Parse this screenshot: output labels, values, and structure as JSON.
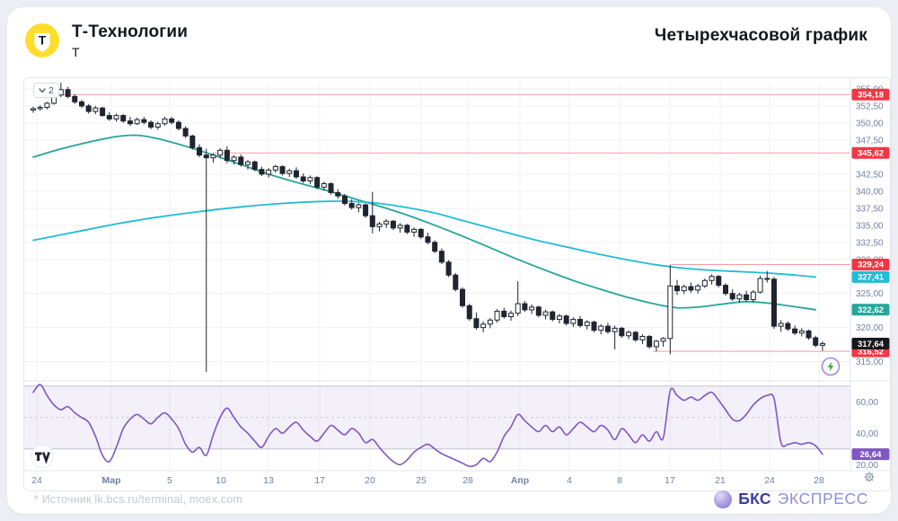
{
  "header": {
    "logo_letter": "Т",
    "title": "Т-Технологии",
    "subtitle": "Т",
    "right_title": "Четырехчасовой график",
    "brand_yellow": "#ffdd2d"
  },
  "toolbar": {
    "legend_collapsed_count": "2"
  },
  "footer": {
    "source_note": "* Источник lk.bcs.ru/terminal, moex.com",
    "brand_bold": "БКС",
    "brand_light": "ЭКСПРЕСС"
  },
  "icons": {
    "legend": "chevron-down-icon",
    "axis_corner": "gear-icon",
    "quick_trade": "lightning-icon",
    "watermark": "tradingview-logo"
  },
  "chart_data": {
    "type": "candlestick",
    "interval": "4h",
    "candle_color": "#20242e",
    "grid_color": "#f0f2f7",
    "axis_text_color": "#73819f",
    "price_axis": {
      "ticks": [
        {
          "label": "355,00",
          "value": 355.0
        },
        {
          "label": "352,50",
          "value": 352.5
        },
        {
          "label": "350,00",
          "value": 350.0
        },
        {
          "label": "347,50",
          "value": 347.5
        },
        {
          "label": "342,50",
          "value": 342.5
        },
        {
          "label": "340,00",
          "value": 340.0
        },
        {
          "label": "337,50",
          "value": 337.5
        },
        {
          "label": "335,00",
          "value": 335.0
        },
        {
          "label": "332,50",
          "value": 332.5
        },
        {
          "label": "330,00",
          "value": 330.0
        },
        {
          "label": "325,00",
          "value": 325.0
        },
        {
          "label": "320,00",
          "value": 320.0
        },
        {
          "label": "315,00",
          "value": 315.0
        }
      ],
      "badges": [
        {
          "label": "354,18",
          "value": 354.18,
          "color": "#f23645"
        },
        {
          "label": "345,62",
          "value": 345.62,
          "color": "#f23645"
        },
        {
          "label": "329,24",
          "value": 329.24,
          "color": "#f23645"
        },
        {
          "label": "327,41",
          "value": 327.41,
          "color": "#22bcd6"
        },
        {
          "label": "322,62",
          "value": 322.62,
          "color": "#26a69a"
        },
        {
          "label": "316,52",
          "value": 316.52,
          "color": "#f23645"
        },
        {
          "label": "317,64",
          "value": 317.64,
          "color": "#16181d"
        }
      ]
    },
    "time_axis": {
      "ticks": [
        {
          "label": "24",
          "idx": 0.52,
          "bold": false
        },
        {
          "label": "Мар",
          "idx": 11.28,
          "bold": true
        },
        {
          "label": "5",
          "idx": 19.71,
          "bold": false
        },
        {
          "label": "10",
          "idx": 27.11,
          "bold": false
        },
        {
          "label": "13",
          "idx": 33.98,
          "bold": false
        },
        {
          "label": "17",
          "idx": 41.38,
          "bold": false
        },
        {
          "label": "20",
          "idx": 48.64,
          "bold": false
        },
        {
          "label": "25",
          "idx": 56.03,
          "bold": false
        },
        {
          "label": "28",
          "idx": 62.78,
          "bold": false
        },
        {
          "label": "Апр",
          "idx": 70.3,
          "bold": true
        },
        {
          "label": "4",
          "idx": 77.43,
          "bold": false
        },
        {
          "label": "8",
          "idx": 84.7,
          "bold": false
        },
        {
          "label": "17",
          "idx": 91.96,
          "bold": false
        },
        {
          "label": "21",
          "idx": 99.22,
          "bold": false
        },
        {
          "label": "24",
          "idx": 106.36,
          "bold": false
        },
        {
          "label": "28",
          "idx": 113.49,
          "bold": false
        }
      ]
    },
    "levels": [
      {
        "price": 354.18,
        "from_idx": 0,
        "color": "#f23645"
      },
      {
        "price": 345.62,
        "from_idx": 26.2,
        "color": "#f23645"
      },
      {
        "price": 329.24,
        "from_idx": 92.1,
        "color": "#f23645"
      },
      {
        "price": 316.52,
        "from_idx": 89.5,
        "color": "#f23645"
      }
    ],
    "candles": [
      [
        351.9,
        352.4,
        351.5,
        352.1
      ],
      [
        352.1,
        352.6,
        351.8,
        352.3
      ],
      [
        352.3,
        353.1,
        352.0,
        352.9
      ],
      [
        352.9,
        354.4,
        352.7,
        354.1
      ],
      [
        354.1,
        355.9,
        353.8,
        354.9
      ],
      [
        354.9,
        355.3,
        353.6,
        353.9
      ],
      [
        353.9,
        354.2,
        352.8,
        353.1
      ],
      [
        353.1,
        353.4,
        352.2,
        352.5
      ],
      [
        352.5,
        352.8,
        351.4,
        351.7
      ],
      [
        351.7,
        352.5,
        351.3,
        352.2
      ],
      [
        352.2,
        352.4,
        350.9,
        351.1
      ],
      [
        351.1,
        351.6,
        350.3,
        350.6
      ],
      [
        350.6,
        351.4,
        350.2,
        351.1
      ],
      [
        351.1,
        351.3,
        350.0,
        350.3
      ],
      [
        350.3,
        350.9,
        349.6,
        349.9
      ],
      [
        349.9,
        350.8,
        349.7,
        350.5
      ],
      [
        350.5,
        350.9,
        349.8,
        350.1
      ],
      [
        350.1,
        350.4,
        349.1,
        349.4
      ],
      [
        349.4,
        350.2,
        349.0,
        349.9
      ],
      [
        349.9,
        350.9,
        349.6,
        350.6
      ],
      [
        350.6,
        350.9,
        349.8,
        350.1
      ],
      [
        350.1,
        350.4,
        348.9,
        349.2
      ],
      [
        349.2,
        349.5,
        347.8,
        348.1
      ],
      [
        348.1,
        348.3,
        346.1,
        346.4
      ],
      [
        346.4,
        346.9,
        345.0,
        345.3
      ],
      [
        345.3,
        346.2,
        313.5,
        344.9
      ],
      [
        344.9,
        345.6,
        344.2,
        345.3
      ],
      [
        345.3,
        346.3,
        344.8,
        346.0
      ],
      [
        346.0,
        346.6,
        344.1,
        344.5
      ],
      [
        344.5,
        345.3,
        343.9,
        345.0
      ],
      [
        345.0,
        345.4,
        343.6,
        343.9
      ],
      [
        343.9,
        344.6,
        343.2,
        344.3
      ],
      [
        344.3,
        344.5,
        342.9,
        343.2
      ],
      [
        343.2,
        343.6,
        342.2,
        342.5
      ],
      [
        342.5,
        343.4,
        342.0,
        343.1
      ],
      [
        343.1,
        343.9,
        342.7,
        343.6
      ],
      [
        343.6,
        343.8,
        342.3,
        342.6
      ],
      [
        342.6,
        343.3,
        342.1,
        343.0
      ],
      [
        343.0,
        343.5,
        341.8,
        342.1
      ],
      [
        342.1,
        342.6,
        341.2,
        341.5
      ],
      [
        341.5,
        342.3,
        341.0,
        342.0
      ],
      [
        342.0,
        342.2,
        340.3,
        340.6
      ],
      [
        340.6,
        341.4,
        340.1,
        341.1
      ],
      [
        341.1,
        341.3,
        339.5,
        339.8
      ],
      [
        339.8,
        340.3,
        338.9,
        339.3
      ],
      [
        339.3,
        339.6,
        337.9,
        338.2
      ],
      [
        338.2,
        338.8,
        337.3,
        337.6
      ],
      [
        337.6,
        338.3,
        336.9,
        338.0
      ],
      [
        338.0,
        338.2,
        336.1,
        336.4
      ],
      [
        336.4,
        339.9,
        333.8,
        334.8
      ],
      [
        334.8,
        335.5,
        334.1,
        335.2
      ],
      [
        335.2,
        335.9,
        334.6,
        335.6
      ],
      [
        335.6,
        335.8,
        334.3,
        334.6
      ],
      [
        334.6,
        335.3,
        333.9,
        335.0
      ],
      [
        335.0,
        335.2,
        333.7,
        334.0
      ],
      [
        334.0,
        334.7,
        333.3,
        334.4
      ],
      [
        334.4,
        334.6,
        333.0,
        333.3
      ],
      [
        333.3,
        333.9,
        332.2,
        332.5
      ],
      [
        332.5,
        332.8,
        330.9,
        331.2
      ],
      [
        331.2,
        331.6,
        329.3,
        329.6
      ],
      [
        329.6,
        329.9,
        327.4,
        327.7
      ],
      [
        327.7,
        328.0,
        325.3,
        325.6
      ],
      [
        325.6,
        325.9,
        322.9,
        323.2
      ],
      [
        323.2,
        323.5,
        321.0,
        321.3
      ],
      [
        321.3,
        322.2,
        319.7,
        320.0
      ],
      [
        320.0,
        320.9,
        319.3,
        320.5
      ],
      [
        320.5,
        321.4,
        319.9,
        321.1
      ],
      [
        321.1,
        322.7,
        320.7,
        322.4
      ],
      [
        322.4,
        322.9,
        321.3,
        321.6
      ],
      [
        321.6,
        322.5,
        321.0,
        322.1
      ],
      [
        322.1,
        326.8,
        321.7,
        323.5
      ],
      [
        323.5,
        323.9,
        322.3,
        322.6
      ],
      [
        322.6,
        323.4,
        322.0,
        323.0
      ],
      [
        323.0,
        323.2,
        321.5,
        321.8
      ],
      [
        321.8,
        322.6,
        321.2,
        322.3
      ],
      [
        322.3,
        322.5,
        320.9,
        321.2
      ],
      [
        321.2,
        322.0,
        320.6,
        321.7
      ],
      [
        321.7,
        321.9,
        320.3,
        320.6
      ],
      [
        320.6,
        321.5,
        320.1,
        321.2
      ],
      [
        321.2,
        321.7,
        320.0,
        320.3
      ],
      [
        320.3,
        321.1,
        319.7,
        320.8
      ],
      [
        320.8,
        321.0,
        319.3,
        319.6
      ],
      [
        319.6,
        320.5,
        319.0,
        320.2
      ],
      [
        320.2,
        320.7,
        319.1,
        319.4
      ],
      [
        319.4,
        320.3,
        316.8,
        319.9
      ],
      [
        319.9,
        320.1,
        318.5,
        318.8
      ],
      [
        318.8,
        319.6,
        318.3,
        319.3
      ],
      [
        319.3,
        319.5,
        317.9,
        318.2
      ],
      [
        318.2,
        319.0,
        317.6,
        318.7
      ],
      [
        318.7,
        318.9,
        316.9,
        317.2
      ],
      [
        317.2,
        318.2,
        316.5,
        318.0
      ],
      [
        318.0,
        318.6,
        317.2,
        318.4
      ],
      [
        318.4,
        329.2,
        316.1,
        326.1
      ],
      [
        326.1,
        327.0,
        324.8,
        325.4
      ],
      [
        325.4,
        326.3,
        324.9,
        326.0
      ],
      [
        326.0,
        326.6,
        325.1,
        325.5
      ],
      [
        325.5,
        326.4,
        325.0,
        326.1
      ],
      [
        326.1,
        327.2,
        325.8,
        326.9
      ],
      [
        326.9,
        327.8,
        326.3,
        327.5
      ],
      [
        327.5,
        327.7,
        325.9,
        326.2
      ],
      [
        326.2,
        326.5,
        324.7,
        325.0
      ],
      [
        325.0,
        325.6,
        323.9,
        324.2
      ],
      [
        324.2,
        325.1,
        323.6,
        324.8
      ],
      [
        324.8,
        325.4,
        323.8,
        324.1
      ],
      [
        324.1,
        325.5,
        323.7,
        325.2
      ],
      [
        325.2,
        327.6,
        325.0,
        327.2
      ],
      [
        327.2,
        328.3,
        326.6,
        327.1
      ],
      [
        327.1,
        327.4,
        319.8,
        320.2
      ],
      [
        320.2,
        321.1,
        319.4,
        320.6
      ],
      [
        320.6,
        320.9,
        319.5,
        319.8
      ],
      [
        319.8,
        320.3,
        318.9,
        319.2
      ],
      [
        319.2,
        319.9,
        318.7,
        319.5
      ],
      [
        319.5,
        319.7,
        318.2,
        318.5
      ],
      [
        318.5,
        318.8,
        317.1,
        317.4
      ],
      [
        317.4,
        318.0,
        316.6,
        317.64
      ]
    ],
    "ma": [
      {
        "name": "ma-slow-line",
        "color": "#26a69a",
        "end_label": "322,62",
        "points": [
          [
            0,
            345.0
          ],
          [
            4,
            346.2
          ],
          [
            8,
            347.2
          ],
          [
            12,
            348.0
          ],
          [
            15,
            348.2
          ],
          [
            18,
            347.7
          ],
          [
            22,
            346.6
          ],
          [
            26,
            345.3
          ],
          [
            30,
            343.9
          ],
          [
            34,
            342.5
          ],
          [
            38,
            341.3
          ],
          [
            42,
            340.2
          ],
          [
            46,
            339.0
          ],
          [
            50,
            337.8
          ],
          [
            54,
            336.5
          ],
          [
            58,
            335.0
          ],
          [
            62,
            333.4
          ],
          [
            66,
            331.7
          ],
          [
            70,
            330.0
          ],
          [
            74,
            328.4
          ],
          [
            78,
            326.9
          ],
          [
            82,
            325.6
          ],
          [
            86,
            324.4
          ],
          [
            90,
            323.4
          ],
          [
            93,
            322.9
          ],
          [
            96,
            323.0
          ],
          [
            100,
            323.5
          ],
          [
            103,
            323.8
          ],
          [
            106,
            323.6
          ],
          [
            109,
            323.2
          ],
          [
            113,
            322.62
          ]
        ]
      },
      {
        "name": "ma-fast-line",
        "color": "#22bcd6",
        "end_label": "327,41",
        "points": [
          [
            0,
            332.8
          ],
          [
            6,
            334.0
          ],
          [
            12,
            335.2
          ],
          [
            18,
            336.2
          ],
          [
            24,
            337.0
          ],
          [
            30,
            337.7
          ],
          [
            36,
            338.2
          ],
          [
            42,
            338.5
          ],
          [
            46,
            338.5
          ],
          [
            50,
            338.2
          ],
          [
            54,
            337.6
          ],
          [
            58,
            336.8
          ],
          [
            62,
            335.7
          ],
          [
            66,
            334.6
          ],
          [
            70,
            333.5
          ],
          [
            74,
            332.5
          ],
          [
            78,
            331.6
          ],
          [
            82,
            330.7
          ],
          [
            86,
            329.9
          ],
          [
            90,
            329.2
          ],
          [
            94,
            328.7
          ],
          [
            98,
            328.4
          ],
          [
            102,
            328.2
          ],
          [
            106,
            328.0
          ],
          [
            110,
            327.7
          ],
          [
            113,
            327.41
          ]
        ]
      }
    ],
    "rsi": {
      "color": "#7e57c2",
      "band": [
        30,
        70
      ],
      "mid": 50,
      "band_fill": "rgba(126,87,194,0.09)",
      "ticks": [
        {
          "label": "60,00",
          "value": 60
        },
        {
          "label": "40,00",
          "value": 40
        },
        {
          "label": "20,00",
          "value": 20
        }
      ],
      "badge": {
        "label": "26,64",
        "value": 26.64,
        "color": "#7e57c2"
      },
      "values": [
        66,
        71,
        64,
        58,
        55,
        57,
        53,
        50,
        47,
        38,
        26,
        22,
        31,
        43,
        49,
        52,
        49,
        46,
        50,
        53,
        49,
        43,
        33,
        28,
        31,
        26,
        39,
        50,
        56,
        50,
        44,
        40,
        35,
        31,
        38,
        43,
        40,
        44,
        47,
        42,
        38,
        35,
        40,
        45,
        42,
        39,
        43,
        40,
        34,
        36,
        31,
        26,
        22,
        20,
        23,
        28,
        31,
        33,
        30,
        27,
        25,
        23,
        21,
        19,
        20,
        24,
        22,
        28,
        38,
        44,
        52,
        48,
        44,
        41,
        45,
        41,
        44,
        39,
        43,
        47,
        44,
        41,
        45,
        42,
        36,
        43,
        39,
        34,
        39,
        35,
        41,
        37,
        67,
        64,
        61,
        63,
        61,
        64,
        66,
        61,
        55,
        49,
        48,
        52,
        58,
        62,
        64,
        62,
        34,
        33,
        34,
        33,
        34,
        32,
        26.64
      ]
    }
  }
}
